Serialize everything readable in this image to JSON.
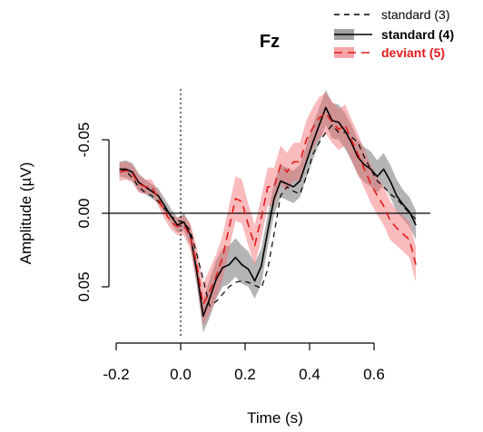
{
  "chart_data": {
    "type": "line",
    "title": "Fz",
    "xlabel": "Time (s)",
    "ylabel": "Amplitude (µV)",
    "xlim": [
      -0.2,
      0.75
    ],
    "ylim": [
      0.085,
      -0.085
    ],
    "y_inverted": true,
    "x_ticks": [
      -0.2,
      0.0,
      0.2,
      0.4,
      0.6
    ],
    "x_tick_labels": [
      "-0.2",
      "0.0",
      "0.2",
      "0.4",
      "0.6"
    ],
    "y_ticks": [
      -0.05,
      0.0,
      0.05
    ],
    "y_tick_labels": [
      "-0.05",
      "0.00",
      "0.05"
    ],
    "reference_lines": {
      "x": 0.0,
      "y": 0.0
    },
    "legend": {
      "position": "top-right",
      "items": [
        {
          "label": "standard (3)",
          "color": "#000000",
          "style": "dashed",
          "bold": false,
          "band": false
        },
        {
          "label": "standard (4)",
          "color": "#000000",
          "style": "solid",
          "bold": true,
          "band": true
        },
        {
          "label": "deviant (5)",
          "color": "#e41a1c",
          "style": "dashed",
          "bold": true,
          "band": true
        }
      ]
    },
    "x": [
      -0.19,
      -0.17,
      -0.15,
      -0.13,
      -0.11,
      -0.09,
      -0.07,
      -0.05,
      -0.03,
      -0.01,
      0.01,
      0.03,
      0.05,
      0.07,
      0.09,
      0.11,
      0.13,
      0.15,
      0.17,
      0.19,
      0.21,
      0.23,
      0.25,
      0.27,
      0.29,
      0.31,
      0.33,
      0.35,
      0.37,
      0.39,
      0.41,
      0.43,
      0.45,
      0.47,
      0.49,
      0.51,
      0.53,
      0.55,
      0.57,
      0.59,
      0.61,
      0.63,
      0.65,
      0.67,
      0.69,
      0.71,
      0.73
    ],
    "series": [
      {
        "name": "standard (3)",
        "color": "#000000",
        "dash": "6,5",
        "width": 1.2,
        "values": [
          -0.03,
          -0.029,
          -0.024,
          -0.018,
          -0.014,
          -0.012,
          -0.008,
          -0.003,
          0.002,
          0.005,
          0.006,
          0.012,
          0.028,
          0.045,
          0.063,
          0.06,
          0.055,
          0.05,
          0.047,
          0.046,
          0.047,
          0.049,
          0.051,
          0.038,
          0.014,
          -0.012,
          -0.018,
          -0.015,
          -0.013,
          -0.025,
          -0.04,
          -0.048,
          -0.055,
          -0.06,
          -0.055,
          -0.055,
          -0.052,
          -0.048,
          -0.038,
          -0.03,
          -0.022,
          -0.018,
          -0.013,
          -0.01,
          -0.005,
          0.0,
          0.004
        ]
      },
      {
        "name": "standard (4)",
        "color": "#000000",
        "dash": "",
        "width": 1.6,
        "band_color": "#777777",
        "band_opacity": 0.55,
        "band": [
          0.005,
          0.006,
          0.006,
          0.006,
          0.005,
          0.005,
          0.005,
          0.005,
          0.005,
          0.005,
          0.006,
          0.007,
          0.009,
          0.011,
          0.013,
          0.013,
          0.013,
          0.013,
          0.013,
          0.013,
          0.012,
          0.012,
          0.012,
          0.011,
          0.011,
          0.011,
          0.011,
          0.011,
          0.011,
          0.011,
          0.012,
          0.012,
          0.012,
          0.012,
          0.012,
          0.012,
          0.012,
          0.012,
          0.012,
          0.012,
          0.011,
          0.011,
          0.011,
          0.011,
          0.01,
          0.01,
          0.01
        ],
        "values": [
          -0.03,
          -0.03,
          -0.028,
          -0.021,
          -0.018,
          -0.015,
          -0.012,
          -0.005,
          0.002,
          0.008,
          0.006,
          0.015,
          0.04,
          0.07,
          0.058,
          0.045,
          0.037,
          0.035,
          0.03,
          0.035,
          0.038,
          0.046,
          0.036,
          0.012,
          -0.01,
          -0.022,
          -0.02,
          -0.018,
          -0.022,
          -0.035,
          -0.048,
          -0.06,
          -0.072,
          -0.063,
          -0.062,
          -0.056,
          -0.048,
          -0.038,
          -0.033,
          -0.03,
          -0.025,
          -0.03,
          -0.022,
          -0.012,
          -0.006,
          -0.001,
          0.008
        ]
      },
      {
        "name": "deviant (5)",
        "color": "#e41a1c",
        "dash": "9,6",
        "width": 1.6,
        "band_color": "#f2696b",
        "band_opacity": 0.45,
        "band": [
          0.006,
          0.006,
          0.006,
          0.006,
          0.005,
          0.005,
          0.005,
          0.005,
          0.005,
          0.006,
          0.007,
          0.009,
          0.012,
          0.014,
          0.015,
          0.015,
          0.015,
          0.015,
          0.015,
          0.015,
          0.014,
          0.014,
          0.014,
          0.013,
          0.013,
          0.013,
          0.013,
          0.013,
          0.013,
          0.013,
          0.014,
          0.014,
          0.014,
          0.014,
          0.014,
          0.014,
          0.014,
          0.014,
          0.013,
          0.013,
          0.013,
          0.013,
          0.013,
          0.012,
          0.012,
          0.012,
          0.012
        ],
        "values": [
          -0.028,
          -0.029,
          -0.027,
          -0.02,
          -0.018,
          -0.018,
          -0.01,
          -0.001,
          0.006,
          0.009,
          0.008,
          0.016,
          0.035,
          0.062,
          0.053,
          0.043,
          0.03,
          0.01,
          -0.01,
          -0.008,
          0.008,
          0.022,
          0.003,
          -0.018,
          -0.018,
          -0.033,
          -0.028,
          -0.035,
          -0.035,
          -0.05,
          -0.058,
          -0.065,
          -0.068,
          -0.062,
          -0.057,
          -0.06,
          -0.05,
          -0.04,
          -0.03,
          -0.02,
          -0.012,
          -0.005,
          0.005,
          0.01,
          0.014,
          0.018,
          0.035
        ]
      }
    ]
  }
}
